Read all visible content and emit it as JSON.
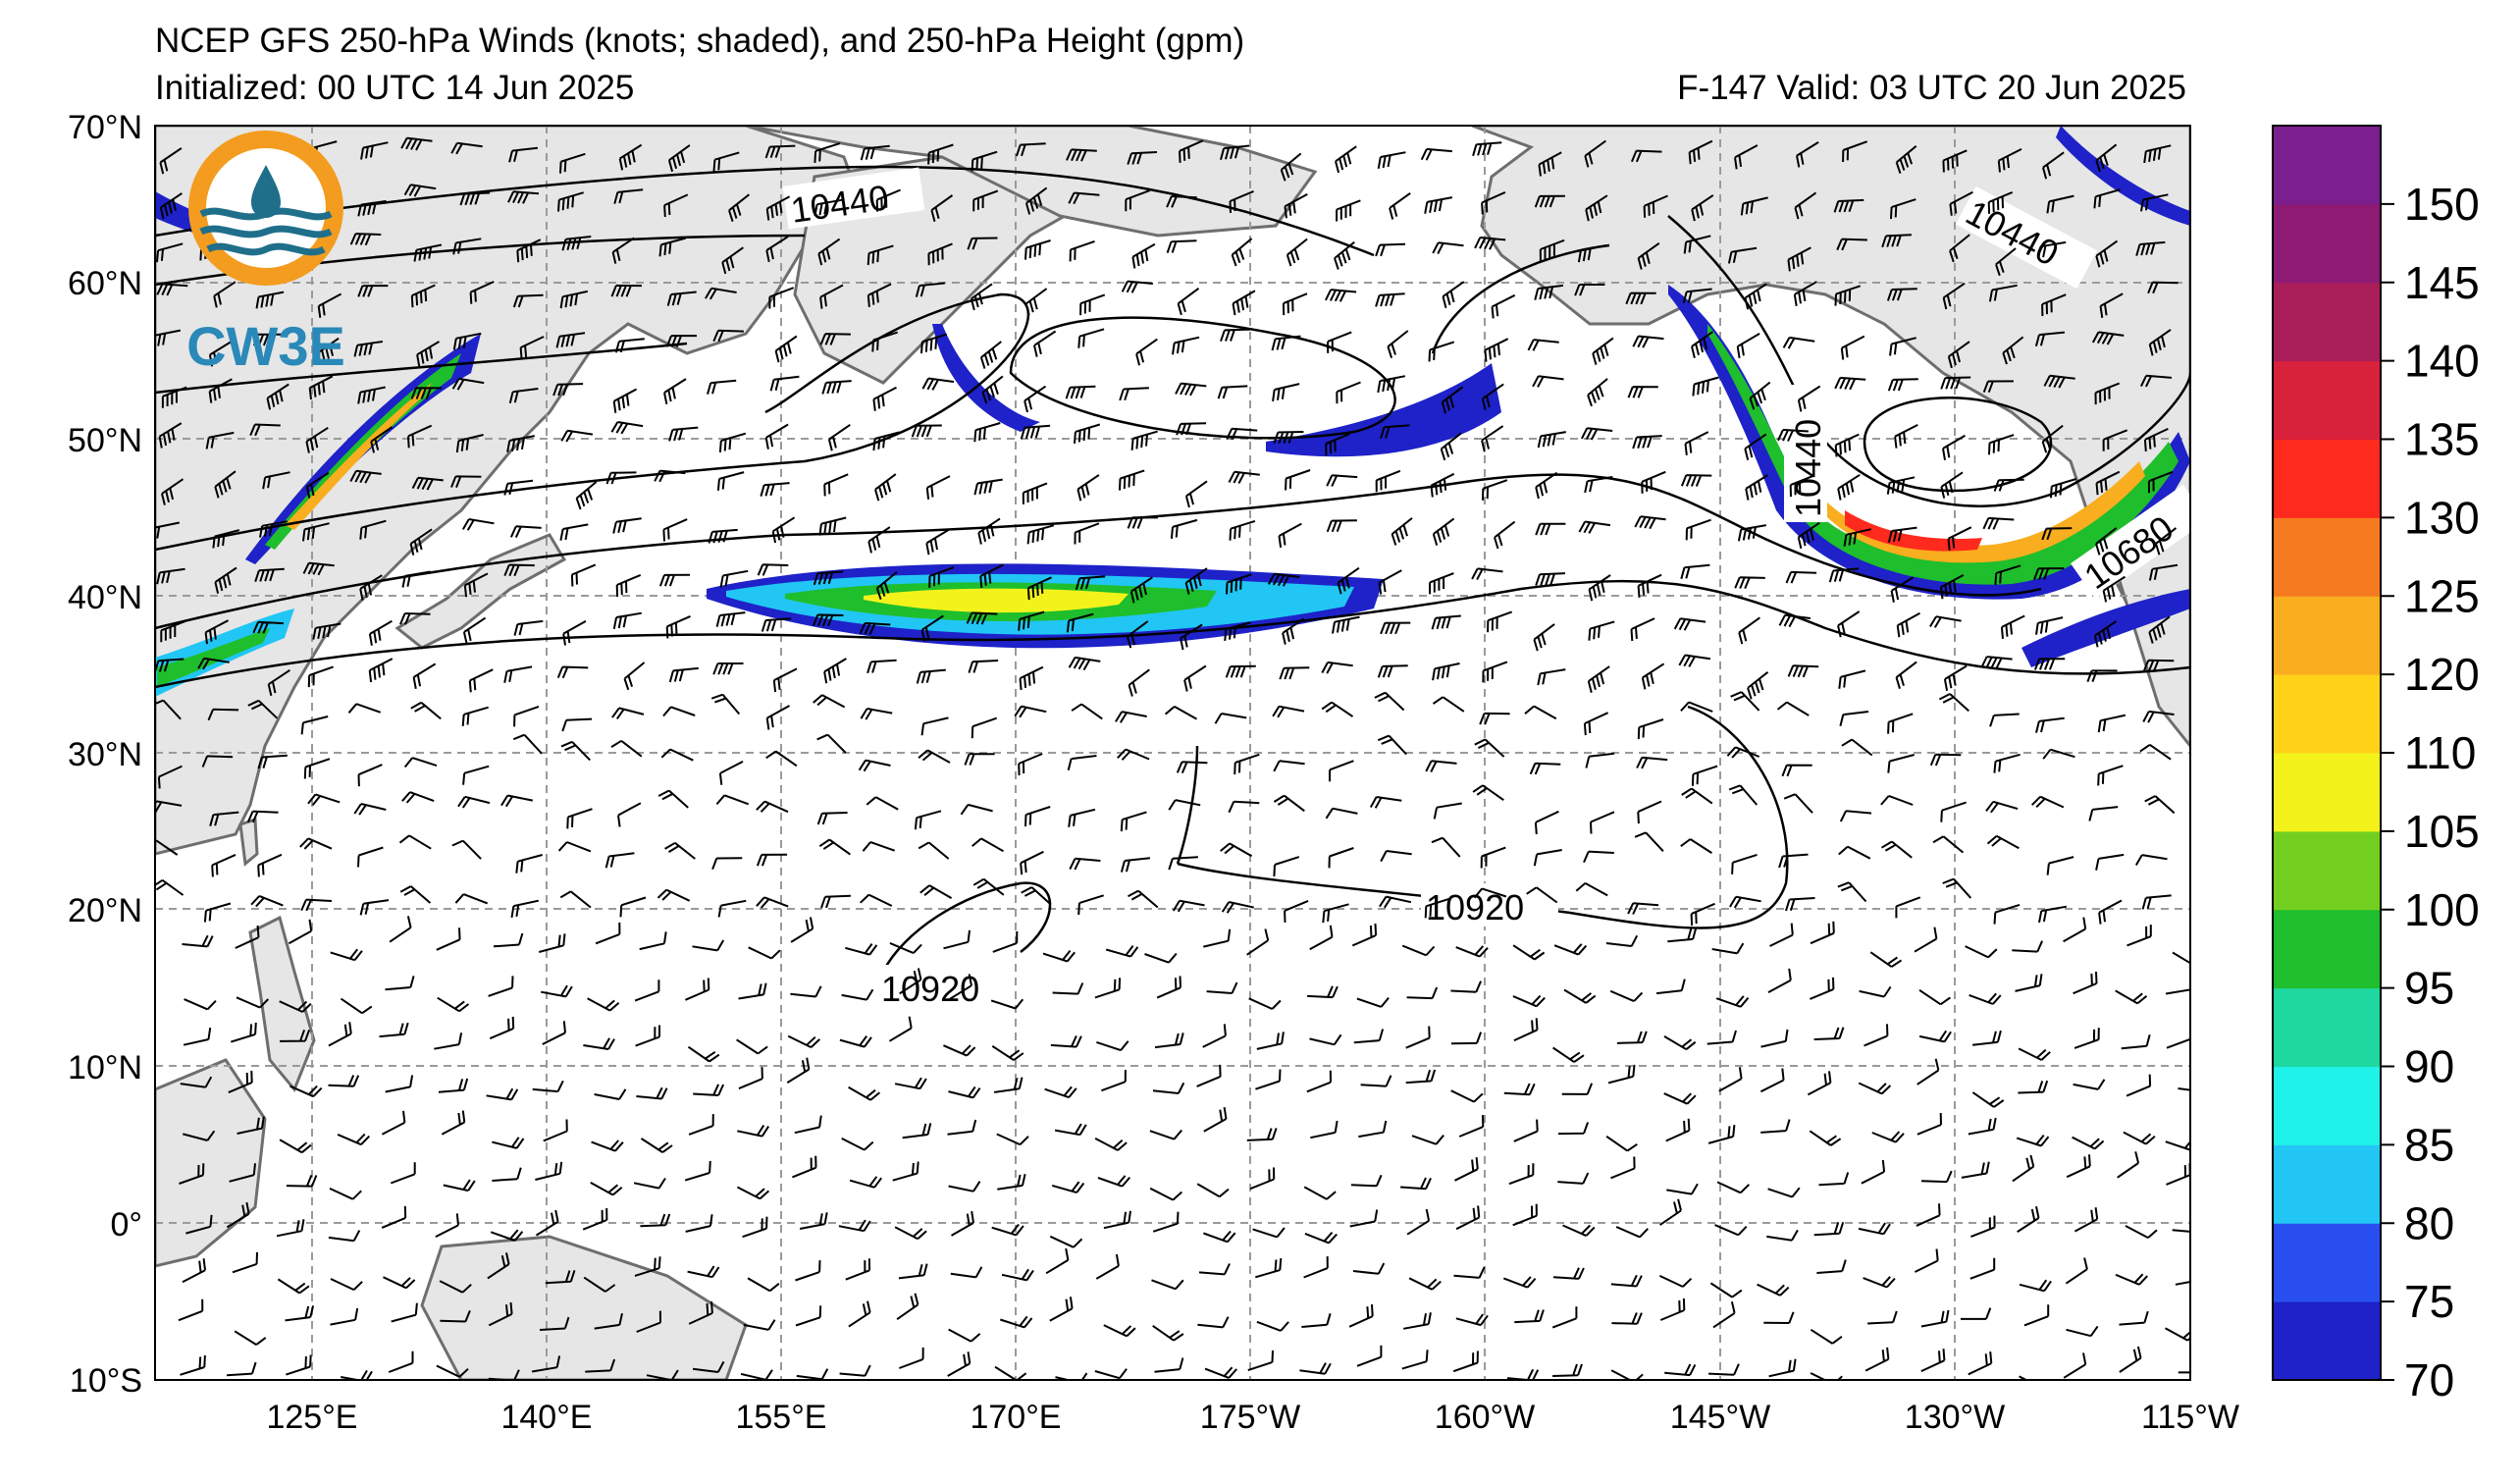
{
  "header": {
    "title": "NCEP GFS 250-hPa Winds (knots; shaded), and 250-hPa Height (gpm)",
    "initialized": "Initialized: 00 UTC 14 Jun 2025",
    "valid": "F-147  Valid: 03 UTC 20 Jun 2025"
  },
  "logo": {
    "text": "CW3E",
    "ring_color": "#F39C1F",
    "wave_color": "#1F6F8B"
  },
  "axes": {
    "lat_labels": [
      "70°N",
      "60°N",
      "50°N",
      "40°N",
      "30°N",
      "20°N",
      "10°N",
      "0°",
      "10°S"
    ],
    "lon_labels": [
      "125°E",
      "140°E",
      "155°E",
      "170°E",
      "175°W",
      "160°W",
      "145°W",
      "130°W",
      "115°W"
    ]
  },
  "contour_labels": [
    "10440",
    "10440",
    "10440",
    "10680",
    "10920",
    "10920"
  ],
  "colorbar": {
    "ticks": [
      "70",
      "75",
      "80",
      "85",
      "90",
      "95",
      "100",
      "105",
      "110",
      "120",
      "125",
      "130",
      "135",
      "140",
      "145",
      "150"
    ],
    "colors": [
      "#1E22C8",
      "#2A4FF0",
      "#21C6F5",
      "#1FF2E8",
      "#1ED8A0",
      "#1FBE2C",
      "#72CF1F",
      "#F3F31B",
      "#FFD21A",
      "#F9AE1F",
      "#F67A1F",
      "#FF2A1E",
      "#D8213A",
      "#A91E59",
      "#8E1A73",
      "#7B1F8F"
    ]
  }
}
